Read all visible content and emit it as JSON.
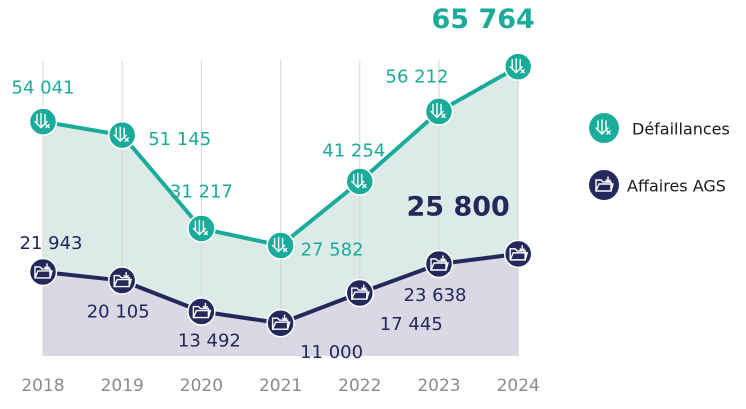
{
  "chart_data": {
    "type": "line",
    "categories": [
      "2018",
      "2019",
      "2020",
      "2021",
      "2022",
      "2023",
      "2024"
    ],
    "series": [
      {
        "name": "Défaillances",
        "color": "#1aab9b",
        "fill": "#dcebe8",
        "values": [
          54041,
          51145,
          31217,
          27582,
          41254,
          56212,
          65764
        ],
        "value_labels": [
          "54 041",
          "51 145",
          "31 217",
          "27 582",
          "41 254",
          "56 212",
          "65 764"
        ]
      },
      {
        "name": "Affaires AGS",
        "color": "#24285b",
        "fill": "#d9d8e4",
        "values": [
          21943,
          20105,
          13492,
          11000,
          17445,
          23638,
          25800
        ],
        "value_labels": [
          "21 943",
          "20 105",
          "13 492",
          "11 000",
          "17 445",
          "23 638",
          "25 800"
        ]
      }
    ],
    "ylim": [
      4000,
      80000
    ]
  }
}
